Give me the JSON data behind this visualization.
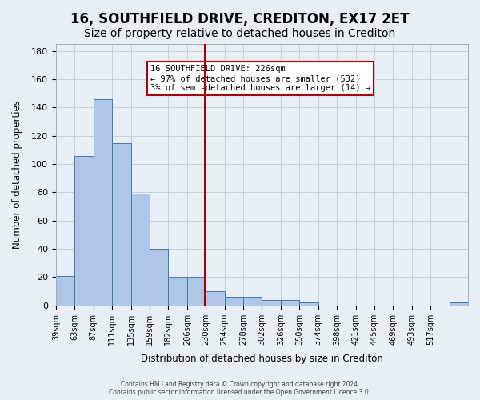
{
  "title": "16, SOUTHFIELD DRIVE, CREDITON, EX17 2ET",
  "subtitle": "Size of property relative to detached houses in Crediton",
  "xlabel": "Distribution of detached houses by size in Crediton",
  "ylabel": "Number of detached properties",
  "bar_values": [
    21,
    106,
    146,
    115,
    79,
    40,
    20,
    20,
    10,
    6,
    6,
    4,
    4,
    2,
    0,
    0,
    0,
    0,
    0,
    0,
    0,
    2
  ],
  "bin_labels": [
    "39sqm",
    "63sqm",
    "87sqm",
    "111sqm",
    "135sqm",
    "159sqm",
    "182sqm",
    "206sqm",
    "230sqm",
    "254sqm",
    "278sqm",
    "302sqm",
    "326sqm",
    "350sqm",
    "374sqm",
    "398sqm",
    "421sqm",
    "445sqm",
    "469sqm",
    "493sqm",
    "517sqm"
  ],
  "bar_color": "#aec6e8",
  "bar_edge_color": "#4477aa",
  "property_line_x": 226,
  "property_line_color": "#aa0000",
  "annotation_text": "16 SOUTHFIELD DRIVE: 226sqm\n← 97% of detached houses are smaller (532)\n3% of semi-detached houses are larger (14) →",
  "annotation_box_color": "#ffffff",
  "annotation_box_edge_color": "#aa0000",
  "ylim": [
    0,
    185
  ],
  "yticks": [
    0,
    20,
    40,
    60,
    80,
    100,
    120,
    140,
    160,
    180
  ],
  "bg_color": "#e8eef5",
  "footer": "Contains HM Land Registry data © Crown copyright and database right 2024.\nContains public sector information licensed under the Open Government Licence 3.0.",
  "title_fontsize": 12,
  "subtitle_fontsize": 10,
  "bin_width": 24
}
